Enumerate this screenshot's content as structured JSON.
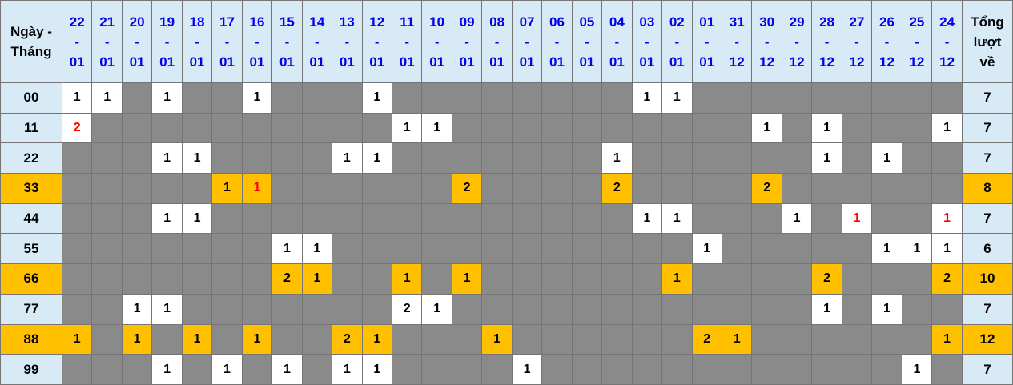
{
  "colors": {
    "header_bg": "#d7eaf6",
    "header_text_blue": "#0000f0",
    "empty_cell_gray": "#8a8a8a",
    "value_cell_white": "#ffffff",
    "highlight_orange": "#ffc000",
    "red_text": "#ff0000",
    "grid_border": "#757575",
    "text_black": "#000000"
  },
  "chart_data": {
    "type": "table",
    "corner_header": [
      "Ngày -",
      "Tháng"
    ],
    "total_header": [
      "Tổng",
      "lượt",
      "về"
    ],
    "columns": [
      "22-01",
      "21-01",
      "20-01",
      "19-01",
      "18-01",
      "17-01",
      "16-01",
      "15-01",
      "14-01",
      "13-01",
      "12-01",
      "11-01",
      "10-01",
      "09-01",
      "08-01",
      "07-01",
      "06-01",
      "05-01",
      "04-01",
      "03-01",
      "02-01",
      "01-01",
      "31-12",
      "30-12",
      "29-12",
      "28-12",
      "27-12",
      "26-12",
      "25-12",
      "24-12"
    ],
    "legend": {
      "empty_cell": "no occurrence (gray)",
      "white_cell": "occurrence count on normal row",
      "orange_row": "highlighted pair row (33, 66, 88)",
      "red_number": "special occurrence value"
    },
    "rows": [
      {
        "label": "00",
        "highlight": false,
        "total": 7,
        "cells": {
          "0": 1,
          "1": 1,
          "3": 1,
          "6": 1,
          "10": 1,
          "19": 1,
          "20": 1
        },
        "red": []
      },
      {
        "label": "11",
        "highlight": false,
        "total": 7,
        "cells": {
          "0": 2,
          "11": 1,
          "12": 1,
          "23": 1,
          "25": 1,
          "29": 1
        },
        "red": [
          0
        ]
      },
      {
        "label": "22",
        "highlight": false,
        "total": 7,
        "cells": {
          "3": 1,
          "4": 1,
          "9": 1,
          "10": 1,
          "18": 1,
          "25": 1,
          "27": 1
        },
        "red": []
      },
      {
        "label": "33",
        "highlight": true,
        "total": 8,
        "cells": {
          "5": 1,
          "6": 1,
          "13": 2,
          "18": 2,
          "23": 2
        },
        "red": [
          6
        ]
      },
      {
        "label": "44",
        "highlight": false,
        "total": 7,
        "cells": {
          "3": 1,
          "4": 1,
          "19": 1,
          "20": 1,
          "24": 1,
          "26": 1,
          "29": 1
        },
        "red": [
          26,
          29
        ]
      },
      {
        "label": "55",
        "highlight": false,
        "total": 6,
        "cells": {
          "7": 1,
          "8": 1,
          "21": 1,
          "27": 1,
          "28": 1,
          "29": 1
        },
        "red": []
      },
      {
        "label": "66",
        "highlight": true,
        "total": 10,
        "cells": {
          "7": 2,
          "8": 1,
          "11": 1,
          "13": 1,
          "20": 1,
          "25": 2,
          "29": 2
        },
        "red": []
      },
      {
        "label": "77",
        "highlight": false,
        "total": 7,
        "cells": {
          "2": 1,
          "3": 1,
          "11": 2,
          "12": 1,
          "25": 1,
          "27": 1
        },
        "red": []
      },
      {
        "label": "88",
        "highlight": true,
        "total": 12,
        "cells": {
          "0": 1,
          "2": 1,
          "4": 1,
          "6": 1,
          "9": 2,
          "10": 1,
          "14": 1,
          "21": 2,
          "22": 1,
          "29": 1
        },
        "red": []
      },
      {
        "label": "99",
        "highlight": false,
        "total": 7,
        "cells": {
          "3": 1,
          "5": 1,
          "7": 1,
          "9": 1,
          "10": 1,
          "15": 1,
          "28": 1
        },
        "red": []
      }
    ]
  }
}
